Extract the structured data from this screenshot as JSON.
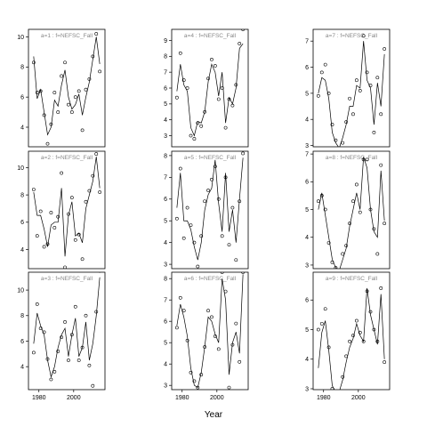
{
  "xlabel": "Year",
  "chart_data": [
    {
      "type": "line",
      "title": "a=1 : f=NEFSC_Fall",
      "x": [
        1977,
        1979,
        1981,
        1983,
        1985,
        1987,
        1989,
        1991,
        1993,
        1995,
        1997,
        1999,
        2001,
        2003,
        2005,
        2007,
        2009,
        2011,
        2013,
        2015
      ],
      "xlim": [
        1974,
        2018
      ],
      "ylim": [
        2.7,
        10.5
      ],
      "yticks": [
        4,
        6,
        8,
        10
      ],
      "series": [
        {
          "type": "scatter",
          "color": "#000000",
          "values": [
            8.3,
            6.3,
            6.4,
            4.8,
            2.9,
            4.2,
            6.3,
            5.0,
            7.4,
            8.3,
            5.5,
            5.0,
            6.0,
            6.4,
            3.8,
            6.5,
            7.2,
            8.7,
            10.2,
            7.7
          ]
        },
        {
          "type": "line",
          "color": "#000000",
          "values": [
            8.7,
            5.9,
            6.5,
            5.0,
            3.5,
            4.0,
            5.8,
            5.4,
            6.8,
            7.8,
            6.0,
            5.2,
            5.5,
            6.2,
            4.8,
            6.0,
            7.0,
            8.5,
            10.0,
            8.2
          ]
        }
      ]
    },
    {
      "type": "line",
      "title": "a=2 : f=NEFSC_Fall",
      "x": [
        1977,
        1979,
        1981,
        1983,
        1985,
        1987,
        1989,
        1991,
        1993,
        1995,
        1997,
        1999,
        2001,
        2003,
        2005,
        2007,
        2009,
        2011,
        2013,
        2015
      ],
      "xlim": [
        1974,
        2018
      ],
      "ylim": [
        2.6,
        11.2
      ],
      "yticks": [
        4,
        6,
        8,
        10
      ],
      "series": [
        {
          "type": "scatter",
          "color": "#000000",
          "values": [
            8.4,
            5.0,
            6.8,
            4.2,
            4.4,
            6.7,
            5.6,
            6.4,
            9.6,
            2.7,
            6.6,
            7.8,
            4.7,
            5.1,
            3.3,
            7.5,
            8.3,
            9.4,
            11.0,
            8.2
          ]
        },
        {
          "type": "line",
          "color": "#000000",
          "values": [
            8.2,
            6.5,
            6.5,
            5.5,
            4.2,
            5.8,
            6.0,
            6.0,
            8.5,
            3.5,
            6.5,
            7.5,
            5.0,
            5.2,
            4.5,
            7.0,
            8.0,
            9.0,
            10.8,
            8.5
          ]
        }
      ]
    },
    {
      "type": "line",
      "title": "a=3 : f=NEFSC_Fall",
      "x": [
        1977,
        1979,
        1981,
        1983,
        1985,
        1987,
        1989,
        1991,
        1993,
        1995,
        1997,
        1999,
        2001,
        2003,
        2005,
        2007,
        2009,
        2011,
        2013,
        2015
      ],
      "xlim": [
        1974,
        2018
      ],
      "ylim": [
        2.2,
        11.4
      ],
      "yticks": [
        4,
        6,
        8,
        10
      ],
      "xticks": [
        1980,
        2000
      ],
      "series": [
        {
          "type": "scatter",
          "color": "#000000",
          "values": [
            5.1,
            8.9,
            7.0,
            6.7,
            4.6,
            3.0,
            3.6,
            5.2,
            6.3,
            7.5,
            4.5,
            6.5,
            8.7,
            4.5,
            5.5,
            8.0,
            4.1,
            2.5,
            8.3,
            11.5
          ]
        },
        {
          "type": "line",
          "color": "#000000",
          "values": [
            5.8,
            8.2,
            7.2,
            6.5,
            4.5,
            3.2,
            4.0,
            5.5,
            6.5,
            7.0,
            4.8,
            6.5,
            7.8,
            4.8,
            5.5,
            7.5,
            4.5,
            5.8,
            8.0,
            11.0
          ]
        }
      ]
    },
    {
      "type": "line",
      "title": "a=4 : f=NEFSC_Fall",
      "x": [
        1977,
        1979,
        1981,
        1983,
        1985,
        1987,
        1989,
        1991,
        1993,
        1995,
        1997,
        1999,
        2001,
        2003,
        2005,
        2007,
        2009,
        2011,
        2013,
        2015
      ],
      "xlim": [
        1974,
        2018
      ],
      "ylim": [
        2.3,
        9.7
      ],
      "yticks": [
        3,
        4,
        5,
        6,
        7,
        8,
        9
      ],
      "series": [
        {
          "type": "scatter",
          "color": "#000000",
          "values": [
            5.4,
            8.2,
            6.5,
            6.0,
            3.0,
            2.8,
            3.8,
            3.6,
            4.5,
            6.6,
            7.8,
            7.4,
            5.3,
            6.0,
            3.5,
            5.3,
            4.9,
            6.2,
            8.8,
            9.7
          ]
        },
        {
          "type": "line",
          "color": "#000000",
          "values": [
            5.8,
            7.5,
            6.2,
            5.8,
            3.5,
            3.0,
            3.9,
            3.8,
            4.5,
            6.4,
            7.5,
            7.0,
            5.5,
            7.0,
            3.8,
            5.4,
            5.0,
            6.0,
            8.5,
            8.8
          ]
        }
      ]
    },
    {
      "type": "line",
      "title": "a=5 : f=NEFSC_Fall",
      "x": [
        1977,
        1979,
        1981,
        1983,
        1985,
        1987,
        1989,
        1991,
        1993,
        1995,
        1997,
        1999,
        2001,
        2003,
        2005,
        2007,
        2009,
        2011,
        2013,
        2015
      ],
      "xlim": [
        1974,
        2018
      ],
      "ylim": [
        2.8,
        8.2
      ],
      "yticks": [
        3,
        4,
        5,
        6,
        7,
        8
      ],
      "series": [
        {
          "type": "scatter",
          "color": "#000000",
          "values": [
            5.1,
            7.4,
            4.2,
            5.6,
            4.8,
            4.0,
            2.9,
            4.3,
            5.9,
            6.4,
            6.9,
            7.5,
            6.0,
            4.3,
            7.0,
            3.9,
            5.6,
            3.2,
            5.9,
            8.1
          ]
        },
        {
          "type": "line",
          "color": "#000000",
          "values": [
            5.6,
            7.2,
            5.0,
            5.0,
            4.6,
            3.8,
            3.2,
            4.0,
            5.5,
            6.2,
            6.5,
            7.8,
            5.8,
            4.5,
            7.2,
            4.5,
            5.5,
            4.0,
            6.0,
            7.9
          ]
        }
      ]
    },
    {
      "type": "line",
      "title": "a=6 : f=NEFSC_Fall",
      "x": [
        1977,
        1979,
        1981,
        1983,
        1985,
        1987,
        1989,
        1991,
        1993,
        1995,
        1997,
        1999,
        2001,
        2003,
        2005,
        2007,
        2009,
        2011,
        2013,
        2015
      ],
      "xlim": [
        1974,
        2018
      ],
      "ylim": [
        2.8,
        8.3
      ],
      "yticks": [
        3,
        4,
        5,
        6,
        7,
        8
      ],
      "xticks": [
        1980,
        2000
      ],
      "series": [
        {
          "type": "scatter",
          "color": "#000000",
          "values": [
            5.7,
            7.1,
            6.5,
            5.1,
            3.6,
            3.2,
            2.9,
            3.5,
            4.8,
            6.5,
            6.2,
            5.3,
            4.7,
            8.3,
            7.4,
            2.9,
            4.9,
            5.9,
            4.1,
            8.3
          ]
        },
        {
          "type": "line",
          "color": "#000000",
          "values": [
            5.8,
            6.8,
            6.2,
            5.3,
            3.8,
            3.0,
            2.9,
            3.6,
            4.8,
            6.2,
            6.0,
            5.4,
            5.0,
            8.0,
            7.0,
            3.5,
            5.0,
            5.5,
            4.5,
            8.2
          ]
        }
      ]
    },
    {
      "type": "line",
      "title": "a=7 : f=NEFSC_Fall",
      "x": [
        1977,
        1979,
        1981,
        1983,
        1985,
        1987,
        1989,
        1991,
        1993,
        1995,
        1997,
        1999,
        2001,
        2003,
        2005,
        2007,
        2009,
        2011,
        2013,
        2015
      ],
      "xlim": [
        1974,
        2018
      ],
      "ylim": [
        2.95,
        7.45
      ],
      "yticks": [
        3,
        4,
        5,
        6,
        7
      ],
      "series": [
        {
          "type": "scatter",
          "color": "#000000",
          "values": [
            4.9,
            5.8,
            6.1,
            5.0,
            3.8,
            3.2,
            2.8,
            3.1,
            3.9,
            4.8,
            4.2,
            5.5,
            5.1,
            7.2,
            5.8,
            5.3,
            3.5,
            5.6,
            4.2,
            6.7
          ]
        },
        {
          "type": "line",
          "color": "#000000",
          "values": [
            5.0,
            5.6,
            5.5,
            4.8,
            3.5,
            3.1,
            2.9,
            3.3,
            3.8,
            4.5,
            4.5,
            5.3,
            5.2,
            7.0,
            5.5,
            5.2,
            3.8,
            5.4,
            4.5,
            6.5
          ]
        }
      ]
    },
    {
      "type": "line",
      "title": "a=8 : f=NEFSC_Fall",
      "x": [
        1977,
        1979,
        1981,
        1983,
        1985,
        1987,
        1989,
        1991,
        1993,
        1995,
        1997,
        1999,
        2001,
        2003,
        2005,
        2007,
        2009,
        2011,
        2013,
        2015
      ],
      "xlim": [
        1974,
        2018
      ],
      "ylim": [
        2.87,
        7.1
      ],
      "yticks": [
        3,
        4,
        5,
        6,
        7
      ],
      "series": [
        {
          "type": "scatter",
          "color": "#000000",
          "values": [
            5.3,
            5.5,
            5.0,
            3.8,
            3.1,
            2.9,
            2.8,
            3.4,
            3.7,
            4.5,
            5.3,
            5.9,
            4.9,
            6.8,
            6.8,
            5.0,
            4.3,
            3.4,
            6.6,
            4.5
          ]
        },
        {
          "type": "line",
          "color": "#000000",
          "values": [
            5.0,
            5.6,
            4.8,
            4.0,
            3.2,
            2.9,
            2.8,
            3.2,
            3.6,
            4.4,
            5.0,
            5.6,
            5.0,
            6.9,
            6.5,
            5.0,
            4.2,
            4.0,
            6.4,
            4.6
          ]
        }
      ]
    },
    {
      "type": "line",
      "title": "a=9 : f=NEFSC_Fall",
      "x": [
        1977,
        1979,
        1981,
        1983,
        1985,
        1987,
        1989,
        1991,
        1993,
        1995,
        1997,
        1999,
        2001,
        2003,
        2005,
        2007,
        2009,
        2011,
        2013,
        2015
      ],
      "xlim": [
        1974,
        2018
      ],
      "ylim": [
        2.97,
        6.94
      ],
      "yticks": [
        3,
        4,
        5,
        6
      ],
      "xticks": [
        1980,
        2000
      ],
      "series": [
        {
          "type": "scatter",
          "color": "#000000",
          "values": [
            5.0,
            5.2,
            5.7,
            4.4,
            3.0,
            2.8,
            2.9,
            3.4,
            4.1,
            4.6,
            4.8,
            5.3,
            4.9,
            4.6,
            6.3,
            5.6,
            5.0,
            4.6,
            6.4,
            3.9
          ]
        },
        {
          "type": "line",
          "color": "#000000",
          "values": [
            3.7,
            4.9,
            5.3,
            4.3,
            3.1,
            2.9,
            2.9,
            3.3,
            3.9,
            4.4,
            4.7,
            5.2,
            4.8,
            4.6,
            6.4,
            5.5,
            5.0,
            4.5,
            6.2,
            4.0
          ]
        }
      ]
    }
  ]
}
